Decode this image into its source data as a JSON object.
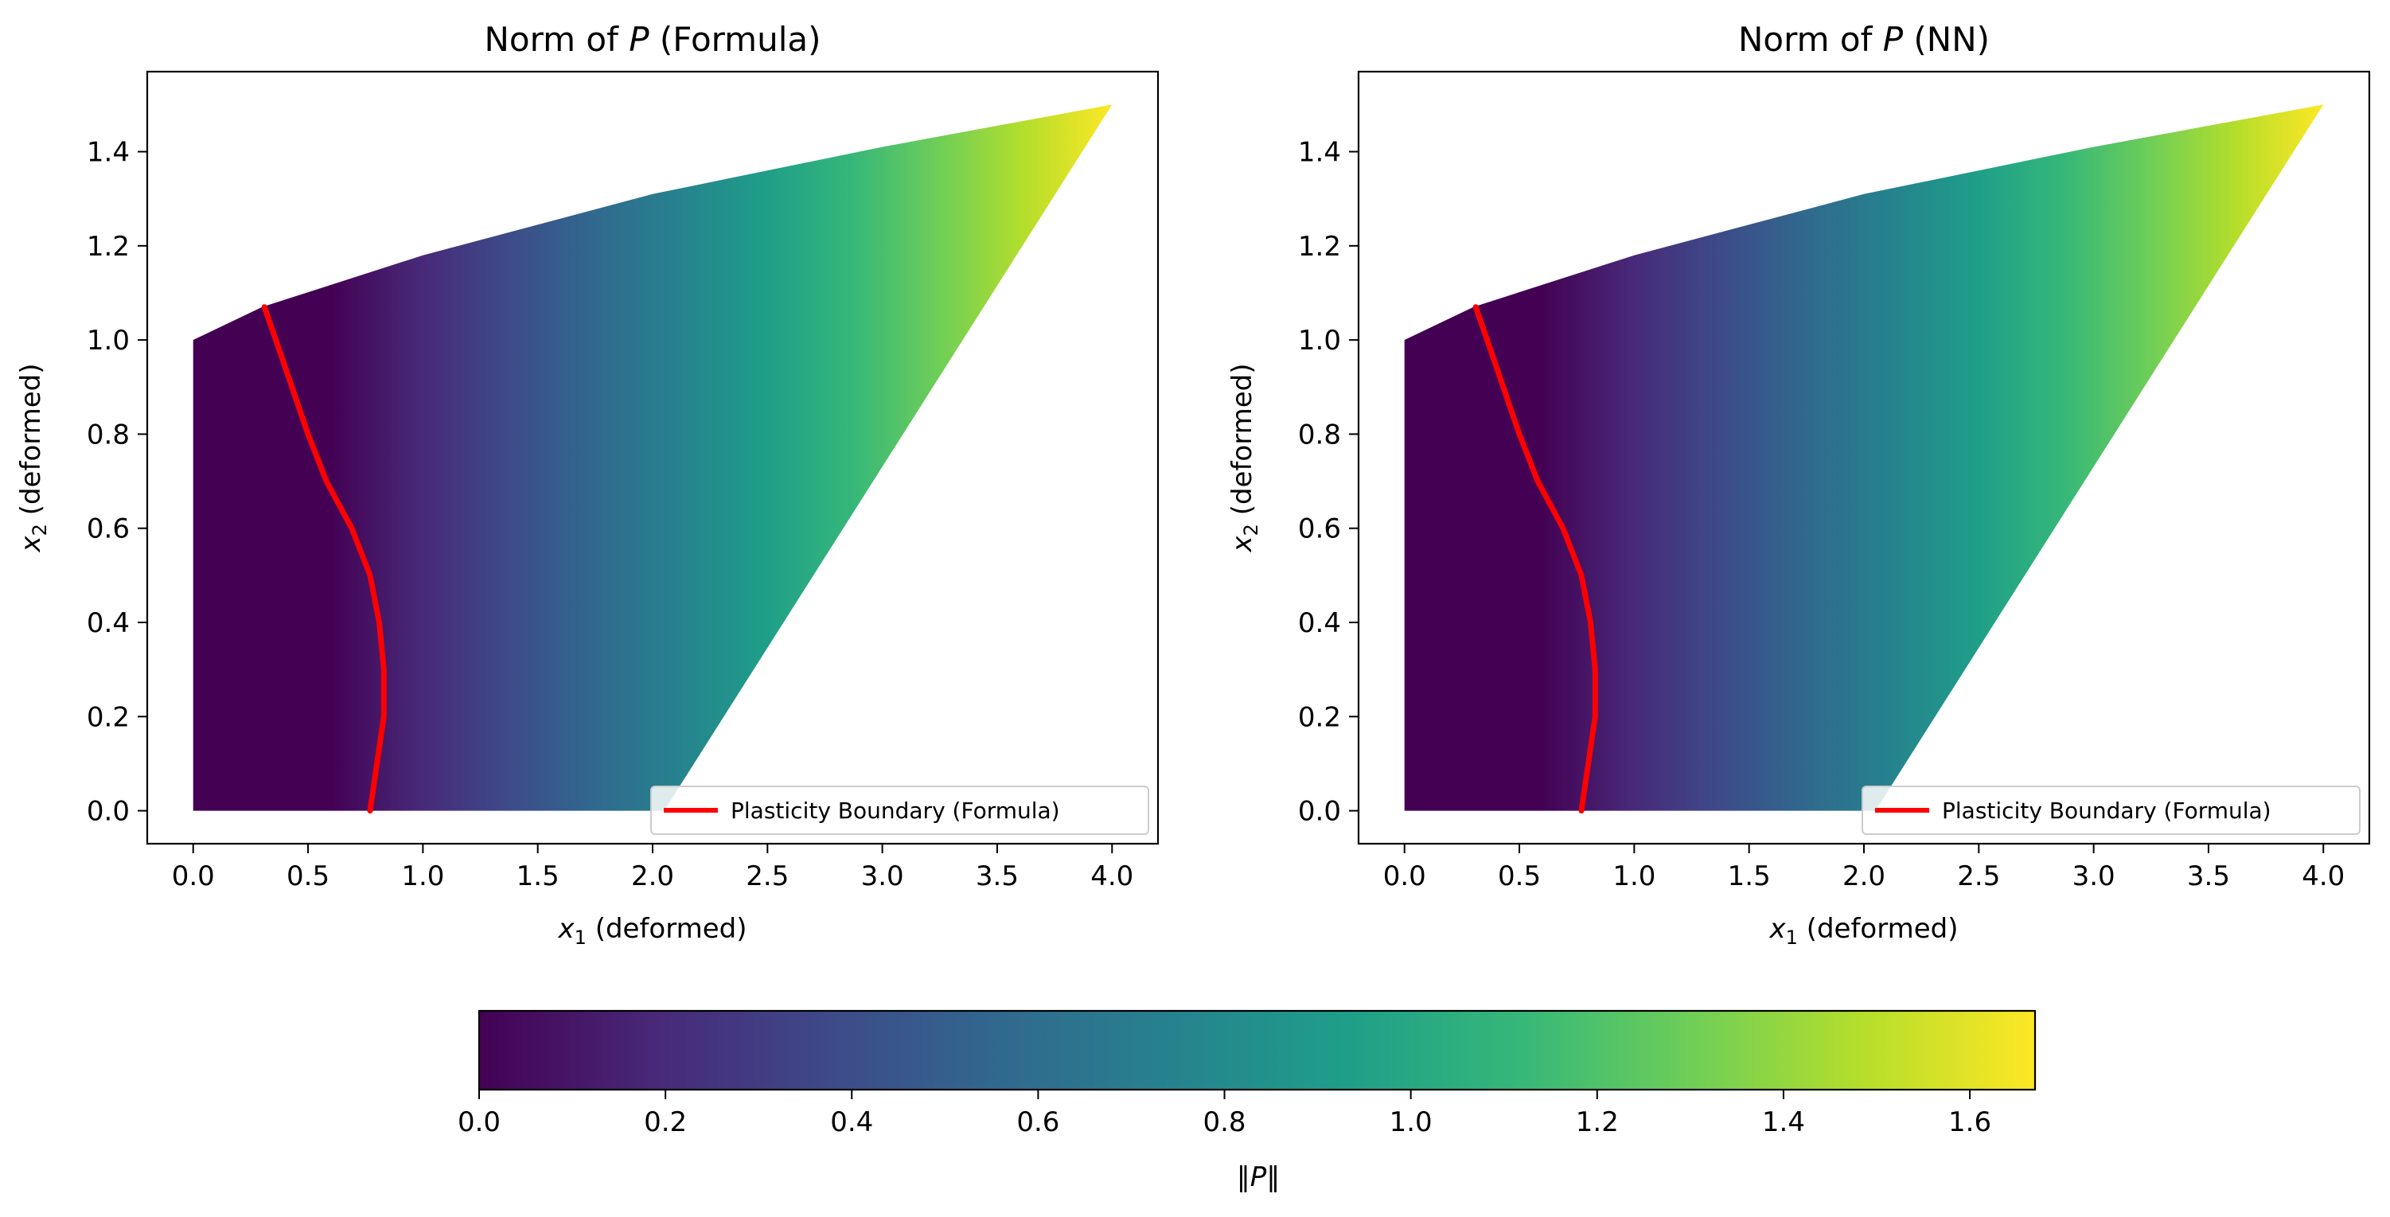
{
  "chart_data": [
    {
      "type": "heatmap",
      "title": "Norm of P (Formula)",
      "title_parts": {
        "prefix": "Norm of ",
        "symbol": "P",
        "suffix": " (Formula)"
      },
      "xlabel": "x₁ (deformed)",
      "xlabel_parts": {
        "sym": "x",
        "sub": "1",
        "rest": " (deformed)"
      },
      "ylabel": "x₂ (deformed)",
      "ylabel_parts": {
        "sym": "x",
        "sub": "2",
        "rest": " (deformed)"
      },
      "xlim": [
        -0.2,
        4.2
      ],
      "ylim": [
        -0.07,
        1.57
      ],
      "xticks": [
        "0.0",
        "0.5",
        "1.0",
        "1.5",
        "2.0",
        "2.5",
        "3.0",
        "3.5",
        "4.0"
      ],
      "yticks": [
        "0.0",
        "0.2",
        "0.4",
        "0.6",
        "0.8",
        "1.0",
        "1.2",
        "1.4"
      ],
      "domain_outline": {
        "bottom_edge": [
          [
            0.0,
            0.0
          ],
          [
            2.05,
            0.0
          ]
        ],
        "right_edge": [
          [
            2.05,
            0.0
          ],
          [
            4.0,
            1.5
          ]
        ],
        "top_edge": [
          [
            0.0,
            1.0
          ],
          [
            0.3,
            1.07
          ],
          [
            1.0,
            1.18
          ],
          [
            2.0,
            1.31
          ],
          [
            3.0,
            1.41
          ],
          [
            4.0,
            1.5
          ]
        ],
        "left_edge": [
          [
            0.0,
            0.0
          ],
          [
            0.0,
            1.0
          ]
        ]
      },
      "color_field": {
        "colormap": "viridis",
        "vmin": 0.0,
        "vmax": 1.67,
        "x_at_min": 0.6,
        "x_at_max": 4.0
      },
      "series": [
        {
          "name": "Plasticity Boundary (Formula)",
          "color": "#ff0000",
          "points": [
            [
              0.77,
              0.0
            ],
            [
              0.8,
              0.1
            ],
            [
              0.83,
              0.2
            ],
            [
              0.83,
              0.3
            ],
            [
              0.81,
              0.4
            ],
            [
              0.77,
              0.5
            ],
            [
              0.69,
              0.6
            ],
            [
              0.58,
              0.7
            ],
            [
              0.5,
              0.8
            ],
            [
              0.43,
              0.9
            ],
            [
              0.36,
              1.0
            ],
            [
              0.31,
              1.07
            ]
          ]
        }
      ],
      "legend": {
        "position": "lower-right",
        "entries": [
          "Plasticity Boundary (Formula)"
        ]
      }
    },
    {
      "type": "heatmap",
      "title": "Norm of P (NN)",
      "title_parts": {
        "prefix": "Norm of ",
        "symbol": "P",
        "suffix": " (NN)"
      },
      "xlabel": "x₁ (deformed)",
      "xlabel_parts": {
        "sym": "x",
        "sub": "1",
        "rest": " (deformed)"
      },
      "ylabel": "x₂ (deformed)",
      "ylabel_parts": {
        "sym": "x",
        "sub": "2",
        "rest": " (deformed)"
      },
      "xlim": [
        -0.2,
        4.2
      ],
      "ylim": [
        -0.07,
        1.57
      ],
      "xticks": [
        "0.0",
        "0.5",
        "1.0",
        "1.5",
        "2.0",
        "2.5",
        "3.0",
        "3.5",
        "4.0"
      ],
      "yticks": [
        "0.0",
        "0.2",
        "0.4",
        "0.6",
        "0.8",
        "1.0",
        "1.2",
        "1.4"
      ],
      "domain_outline": {
        "bottom_edge": [
          [
            0.0,
            0.0
          ],
          [
            2.05,
            0.0
          ]
        ],
        "right_edge": [
          [
            2.05,
            0.0
          ],
          [
            4.0,
            1.5
          ]
        ],
        "top_edge": [
          [
            0.0,
            1.0
          ],
          [
            0.3,
            1.07
          ],
          [
            1.0,
            1.18
          ],
          [
            2.0,
            1.31
          ],
          [
            3.0,
            1.41
          ],
          [
            4.0,
            1.5
          ]
        ],
        "left_edge": [
          [
            0.0,
            0.0
          ],
          [
            0.0,
            1.0
          ]
        ]
      },
      "color_field": {
        "colormap": "viridis",
        "vmin": 0.0,
        "vmax": 1.67,
        "x_at_min": 0.6,
        "x_at_max": 4.0
      },
      "series": [
        {
          "name": "Plasticity Boundary (Formula)",
          "color": "#ff0000",
          "points": [
            [
              0.77,
              0.0
            ],
            [
              0.8,
              0.1
            ],
            [
              0.83,
              0.2
            ],
            [
              0.83,
              0.3
            ],
            [
              0.81,
              0.4
            ],
            [
              0.77,
              0.5
            ],
            [
              0.69,
              0.6
            ],
            [
              0.58,
              0.7
            ],
            [
              0.5,
              0.8
            ],
            [
              0.43,
              0.9
            ],
            [
              0.36,
              1.0
            ],
            [
              0.31,
              1.07
            ]
          ]
        }
      ],
      "legend": {
        "position": "lower-right",
        "entries": [
          "Plasticity Boundary (Formula)"
        ]
      }
    }
  ],
  "colorbar": {
    "label": "‖P‖",
    "label_parts": {
      "left": "‖",
      "symbol": "P",
      "right": "‖"
    },
    "range": [
      0.0,
      1.67
    ],
    "ticks": [
      "0.0",
      "0.2",
      "0.4",
      "0.6",
      "0.8",
      "1.0",
      "1.2",
      "1.4",
      "1.6"
    ],
    "colormap": "viridis",
    "orientation": "horizontal"
  }
}
